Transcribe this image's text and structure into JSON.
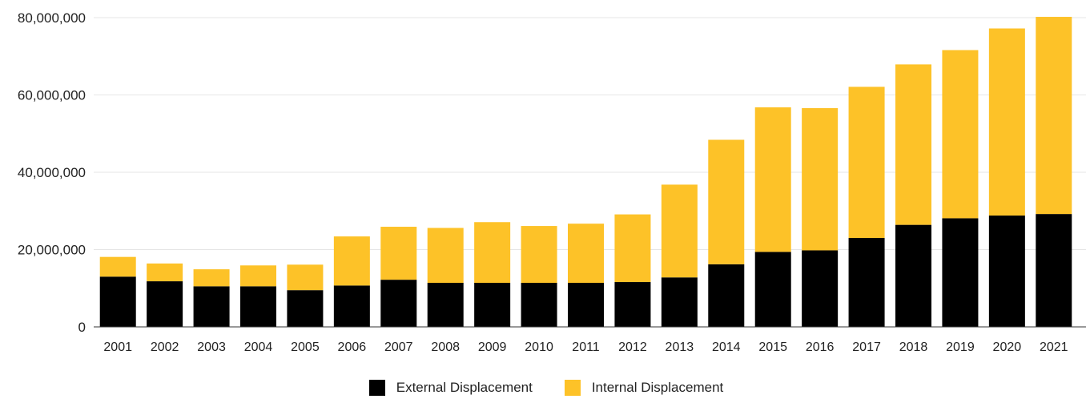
{
  "chart_data": {
    "type": "bar",
    "stacked": true,
    "categories": [
      "2001",
      "2002",
      "2003",
      "2004",
      "2005",
      "2006",
      "2007",
      "2008",
      "2009",
      "2010",
      "2011",
      "2012",
      "2013",
      "2014",
      "2015",
      "2016",
      "2017",
      "2018",
      "2019",
      "2020",
      "2021"
    ],
    "series": [
      {
        "name": "External Displacement",
        "color": "#000000",
        "values": [
          13000000,
          11800000,
          10500000,
          10500000,
          9500000,
          10700000,
          12200000,
          11400000,
          11400000,
          11400000,
          11400000,
          11600000,
          12800000,
          16200000,
          19400000,
          19800000,
          23000000,
          26400000,
          28100000,
          28800000,
          29200000
        ]
      },
      {
        "name": "Internal Displacement",
        "color": "#FDC228",
        "values": [
          5100000,
          4600000,
          4400000,
          5400000,
          6600000,
          12700000,
          13700000,
          14200000,
          15700000,
          14700000,
          15300000,
          17500000,
          24000000,
          32200000,
          37400000,
          36800000,
          39100000,
          41500000,
          43500000,
          48400000,
          51000000
        ]
      }
    ],
    "y_ticks": [
      "0",
      "20,000,000",
      "40,000,000",
      "60,000,000",
      "80,000,000"
    ],
    "ylim": [
      0,
      80000000
    ],
    "grid": true,
    "legend_position": "bottom-center",
    "title": "",
    "xlabel": "",
    "ylabel": ""
  }
}
